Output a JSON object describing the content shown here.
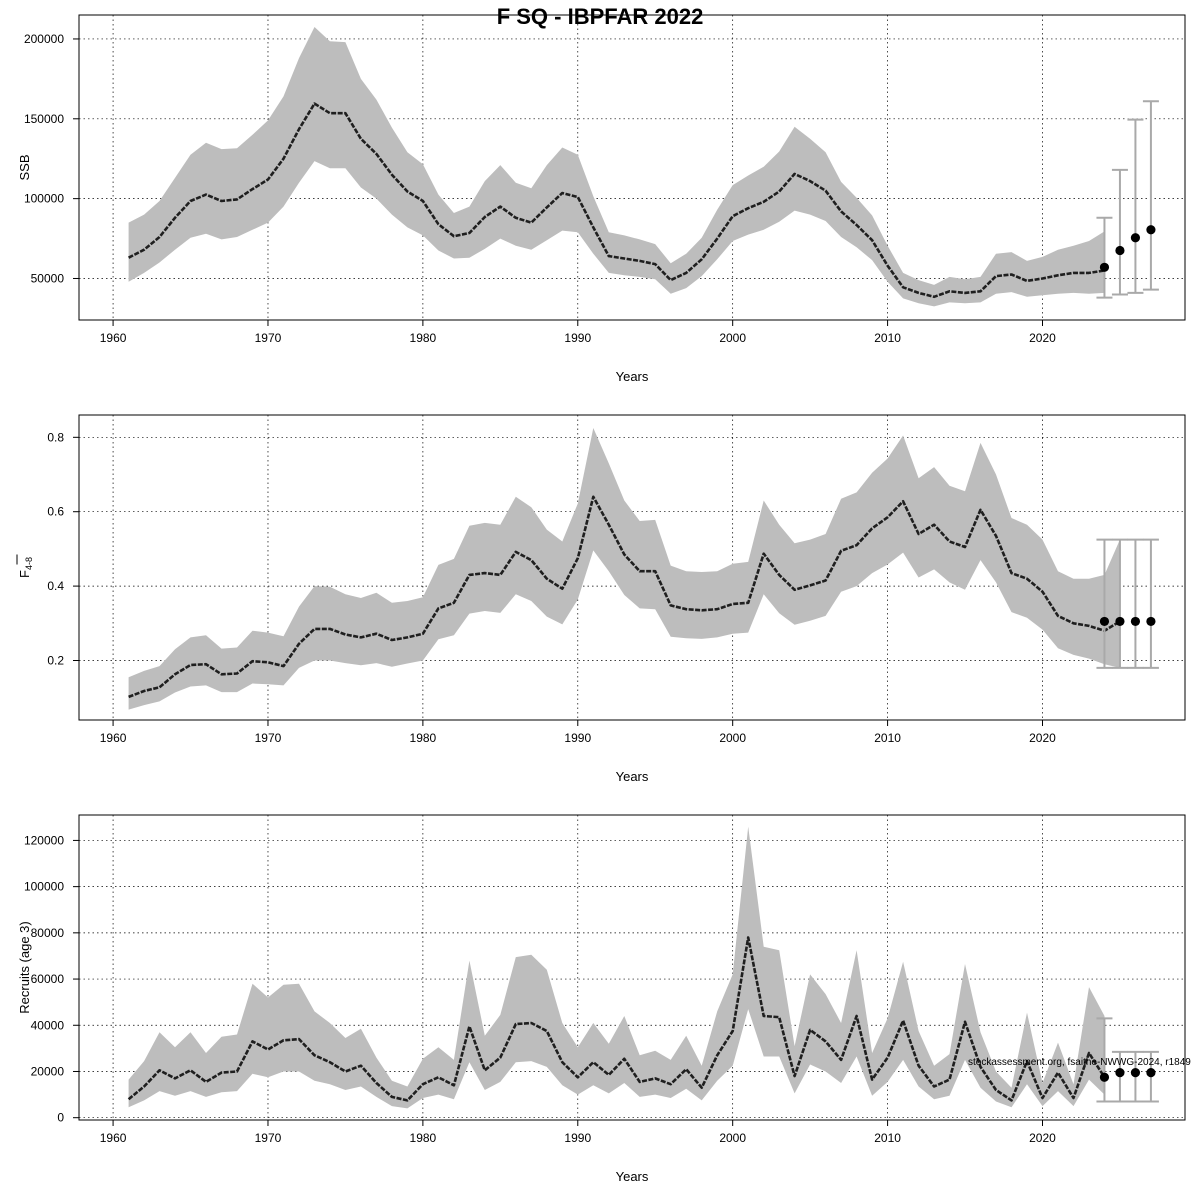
{
  "title": "F SQ - IBPFAR 2022",
  "footer_note": "stockassessment.org, fsaithe-NWWG-2024, r1849",
  "colors": {
    "band": "#bdbdbd",
    "line": "#1f1f1f",
    "error_bar": "#a9a9a9",
    "point": "#000000"
  },
  "chart_data": [
    {
      "type": "line",
      "name": "ssb",
      "xlabel": "Years",
      "ylabel": "SSB",
      "xlim": [
        1957.8,
        2029.2
      ],
      "ylim": [
        24000,
        215000
      ],
      "xticks": [
        1960,
        1970,
        1980,
        1990,
        2000,
        2010,
        2020
      ],
      "yticks": [
        50000,
        100000,
        150000,
        200000
      ],
      "ytick_labels": [
        "50000",
        "100000",
        "150000",
        "200000"
      ],
      "grid": true,
      "series": [
        {
          "name": "estimate",
          "x_start": 1961,
          "median": [
            63000,
            68000,
            76000,
            88000,
            98500,
            102500,
            98500,
            99500,
            106000,
            112000,
            125000,
            143500,
            159500,
            153500,
            153500,
            137500,
            128000,
            115000,
            104500,
            98500,
            84000,
            76500,
            78500,
            88500,
            95000,
            88000,
            85000,
            94500,
            103500,
            101000,
            82000,
            64000,
            62500,
            61000,
            59000,
            49000,
            53500,
            62000,
            75000,
            89000,
            94000,
            98000,
            104500,
            115500,
            111000,
            105000,
            92000,
            83500,
            74000,
            58000,
            44500,
            41000,
            38500,
            42000,
            41000,
            42000,
            51500,
            52500,
            48500,
            50000,
            52000,
            53500,
            53500,
            55000
          ],
          "low": [
            48000,
            53500,
            60000,
            68000,
            75500,
            78000,
            74500,
            76000,
            80500,
            85000,
            95000,
            110000,
            123500,
            119000,
            119000,
            107000,
            100000,
            90000,
            82000,
            77000,
            67500,
            62500,
            63000,
            68500,
            75000,
            70500,
            68000,
            74000,
            80000,
            79000,
            65500,
            53500,
            52000,
            51000,
            49500,
            40500,
            44000,
            51500,
            62000,
            73500,
            77500,
            80500,
            85500,
            92500,
            90000,
            86000,
            76000,
            69500,
            61500,
            48000,
            37500,
            34500,
            32500,
            35000,
            34500,
            35000,
            40500,
            41500,
            38500,
            39500,
            40500,
            41000,
            40500,
            41000
          ],
          "high": [
            85000,
            90000,
            98500,
            113000,
            127500,
            135000,
            131000,
            131500,
            140000,
            149000,
            164000,
            188000,
            207500,
            198500,
            198000,
            175000,
            162000,
            144500,
            129000,
            121500,
            102500,
            91000,
            95000,
            111000,
            121000,
            110000,
            106500,
            121000,
            132000,
            127500,
            101500,
            79000,
            77000,
            74500,
            71500,
            59500,
            65500,
            75500,
            93000,
            108500,
            114500,
            120000,
            129500,
            145000,
            137500,
            129000,
            110500,
            100500,
            89500,
            70500,
            53500,
            49000,
            46000,
            51000,
            49500,
            51000,
            65500,
            66500,
            61000,
            63500,
            68000,
            70500,
            73500,
            79500
          ]
        },
        {
          "name": "forecast",
          "x": [
            2024,
            2025,
            2026,
            2027
          ],
          "median": [
            57000,
            67500,
            75500,
            80500
          ],
          "low": [
            38000,
            40000,
            41000,
            43000
          ],
          "high": [
            88000,
            118000,
            149500,
            161000
          ]
        }
      ]
    },
    {
      "type": "line",
      "name": "fbar",
      "xlabel": "Years",
      "ylabel": "F",
      "ylabel_subscript": "4-8",
      "xlim": [
        1957.8,
        2029.2
      ],
      "ylim": [
        0.04,
        0.86
      ],
      "xticks": [
        1960,
        1970,
        1980,
        1990,
        2000,
        2010,
        2020
      ],
      "yticks": [
        0.2,
        0.4,
        0.6,
        0.8
      ],
      "ytick_labels": [
        "0.2",
        "0.4",
        "0.6",
        "0.8"
      ],
      "grid": true,
      "series": [
        {
          "name": "estimate",
          "x_start": 1961,
          "median": [
            0.102,
            0.118,
            0.128,
            0.163,
            0.188,
            0.19,
            0.163,
            0.165,
            0.198,
            0.195,
            0.185,
            0.245,
            0.285,
            0.285,
            0.27,
            0.262,
            0.272,
            0.255,
            0.262,
            0.272,
            0.34,
            0.355,
            0.43,
            0.435,
            0.43,
            0.492,
            0.47,
            0.42,
            0.393,
            0.475,
            0.64,
            0.565,
            0.485,
            0.44,
            0.44,
            0.348,
            0.338,
            0.335,
            0.338,
            0.352,
            0.355,
            0.487,
            0.43,
            0.39,
            0.402,
            0.415,
            0.495,
            0.51,
            0.555,
            0.585,
            0.628,
            0.54,
            0.565,
            0.52,
            0.505,
            0.605,
            0.535,
            0.435,
            0.42,
            0.385,
            0.32,
            0.3,
            0.293,
            0.28,
            0.305
          ],
          "low": [
            0.068,
            0.08,
            0.09,
            0.114,
            0.13,
            0.133,
            0.115,
            0.115,
            0.138,
            0.136,
            0.133,
            0.18,
            0.2,
            0.2,
            0.193,
            0.187,
            0.193,
            0.183,
            0.192,
            0.2,
            0.257,
            0.268,
            0.326,
            0.333,
            0.328,
            0.378,
            0.36,
            0.318,
            0.297,
            0.364,
            0.496,
            0.44,
            0.376,
            0.34,
            0.338,
            0.264,
            0.26,
            0.258,
            0.262,
            0.272,
            0.275,
            0.378,
            0.327,
            0.296,
            0.307,
            0.32,
            0.385,
            0.4,
            0.435,
            0.458,
            0.49,
            0.423,
            0.445,
            0.41,
            0.39,
            0.47,
            0.41,
            0.33,
            0.315,
            0.283,
            0.233,
            0.215,
            0.205,
            0.19,
            0.18
          ],
          "high": [
            0.155,
            0.172,
            0.185,
            0.23,
            0.262,
            0.268,
            0.232,
            0.235,
            0.28,
            0.275,
            0.265,
            0.345,
            0.4,
            0.398,
            0.378,
            0.368,
            0.382,
            0.355,
            0.36,
            0.37,
            0.457,
            0.473,
            0.562,
            0.57,
            0.565,
            0.64,
            0.612,
            0.552,
            0.52,
            0.622,
            0.825,
            0.73,
            0.63,
            0.575,
            0.578,
            0.455,
            0.44,
            0.438,
            0.44,
            0.46,
            0.465,
            0.63,
            0.565,
            0.515,
            0.525,
            0.54,
            0.635,
            0.652,
            0.705,
            0.743,
            0.805,
            0.69,
            0.72,
            0.67,
            0.655,
            0.785,
            0.7,
            0.583,
            0.565,
            0.525,
            0.44,
            0.42,
            0.42,
            0.43,
            0.525
          ]
        },
        {
          "name": "forecast",
          "x": [
            2024,
            2025,
            2026,
            2027
          ],
          "median": [
            0.305,
            0.305,
            0.305,
            0.305
          ],
          "low": [
            0.18,
            0.18,
            0.18,
            0.18
          ],
          "high": [
            0.525,
            0.525,
            0.525,
            0.525
          ]
        }
      ]
    },
    {
      "type": "line",
      "name": "recruits",
      "xlabel": "Years",
      "ylabel": "Recruits (age 3)",
      "xlim": [
        1957.8,
        2029.2
      ],
      "ylim": [
        -1000,
        131000
      ],
      "xticks": [
        1960,
        1970,
        1980,
        1990,
        2000,
        2010,
        2020
      ],
      "yticks": [
        0,
        20000,
        40000,
        60000,
        80000,
        100000,
        120000
      ],
      "ytick_labels": [
        "0",
        "20000",
        "40000",
        "60000",
        "80000",
        "100000",
        "120000"
      ],
      "grid": true,
      "series": [
        {
          "name": "estimate",
          "x_start": 1961,
          "median": [
            8000,
            13500,
            20500,
            17000,
            20500,
            15500,
            19500,
            20000,
            33000,
            29500,
            33500,
            34000,
            27000,
            24000,
            20000,
            22500,
            15000,
            9000,
            7500,
            14500,
            17500,
            14000,
            39500,
            20500,
            26000,
            40500,
            41000,
            37500,
            24000,
            17500,
            24000,
            18500,
            25500,
            15500,
            17000,
            14500,
            21000,
            13000,
            27000,
            37500,
            78000,
            44000,
            43500,
            18000,
            38000,
            33000,
            25000,
            44000,
            16500,
            26000,
            42000,
            22500,
            13500,
            16500,
            41500,
            22000,
            12000,
            7500,
            24500,
            8500,
            19500,
            8500,
            28000,
            17500
          ],
          "low": [
            4500,
            7500,
            11500,
            9500,
            11500,
            9000,
            11000,
            11500,
            19000,
            17500,
            20000,
            20000,
            16000,
            14500,
            12000,
            13500,
            9000,
            5000,
            4000,
            8500,
            10000,
            8000,
            24000,
            12000,
            15500,
            24000,
            24500,
            22000,
            14000,
            10000,
            14000,
            10500,
            15000,
            9000,
            10000,
            8500,
            12500,
            7500,
            16000,
            22500,
            47000,
            26500,
            26500,
            10500,
            23000,
            20000,
            15000,
            26500,
            9500,
            15500,
            25000,
            13500,
            8000,
            9500,
            25000,
            13000,
            7000,
            4500,
            14500,
            5000,
            11500,
            5000,
            16500,
            10000
          ],
          "high": [
            16500,
            24500,
            37000,
            30500,
            37000,
            28000,
            35000,
            36000,
            58000,
            52000,
            57500,
            58000,
            46000,
            41000,
            34500,
            38500,
            26000,
            16000,
            13500,
            25500,
            30500,
            25000,
            68000,
            35500,
            44500,
            69500,
            70500,
            64000,
            41000,
            30500,
            41000,
            32000,
            44000,
            27000,
            29000,
            25000,
            35500,
            22500,
            46000,
            62000,
            126000,
            74000,
            72500,
            31000,
            62000,
            53500,
            41000,
            72500,
            28000,
            43000,
            67500,
            37500,
            22500,
            27500,
            66500,
            37000,
            20000,
            13000,
            45500,
            15000,
            32500,
            14500,
            56500,
            44000
          ]
        },
        {
          "name": "forecast",
          "x": [
            2024,
            2025,
            2026,
            2027
          ],
          "median": [
            17500,
            19500,
            19500,
            19500
          ],
          "low": [
            7000,
            7000,
            7000,
            7000
          ],
          "high": [
            43000,
            28500,
            28500,
            28500
          ]
        }
      ]
    }
  ]
}
